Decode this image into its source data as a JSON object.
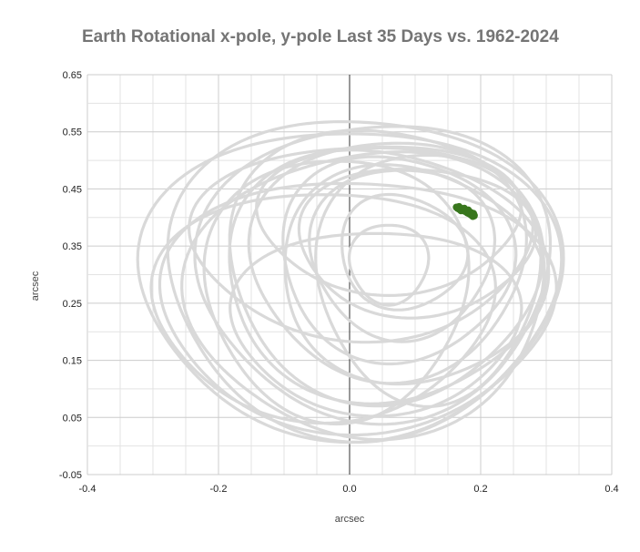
{
  "chart_data": {
    "type": "scatter",
    "title": "Earth Rotational x-pole, y-pole Last 35 Days vs. 1962-2024",
    "xlabel": "arcsec",
    "ylabel": "arcsec",
    "xlim": [
      -0.4,
      0.4
    ],
    "ylim": [
      -0.05,
      0.65
    ],
    "x_ticks": [
      "-0.4",
      "-0.2",
      "0.0",
      "0.2",
      "0.4"
    ],
    "y_ticks": [
      "-0.05",
      "0.05",
      "0.15",
      "0.25",
      "0.35",
      "0.45",
      "0.55",
      "0.65"
    ],
    "grid": true,
    "legend": "none",
    "series": [
      {
        "color": "#d9d9d9",
        "loops": [
          {
            "cx": 0.0,
            "cy": 0.29,
            "rx": 0.32,
            "ry": 0.27,
            "tilt": 0.0
          },
          {
            "cx": 0.02,
            "cy": 0.3,
            "rx": 0.3,
            "ry": 0.28,
            "tilt": 0.08
          },
          {
            "cx": 0.04,
            "cy": 0.31,
            "rx": 0.27,
            "ry": 0.26,
            "tilt": -0.1
          },
          {
            "cx": 0.05,
            "cy": 0.32,
            "rx": 0.24,
            "ry": 0.24,
            "tilt": 0.15
          },
          {
            "cx": 0.06,
            "cy": 0.33,
            "rx": 0.21,
            "ry": 0.21,
            "tilt": -0.05
          },
          {
            "cx": 0.07,
            "cy": 0.33,
            "rx": 0.18,
            "ry": 0.18,
            "tilt": 0.2
          },
          {
            "cx": 0.08,
            "cy": 0.34,
            "rx": 0.14,
            "ry": 0.15,
            "tilt": 0.0
          },
          {
            "cx": 0.08,
            "cy": 0.34,
            "rx": 0.1,
            "ry": 0.1,
            "tilt": 0.3
          },
          {
            "cx": 0.06,
            "cy": 0.32,
            "rx": 0.06,
            "ry": 0.07,
            "tilt": 0.0
          },
          {
            "cx": 0.05,
            "cy": 0.3,
            "rx": 0.25,
            "ry": 0.22,
            "tilt": 0.25
          },
          {
            "cx": 0.03,
            "cy": 0.27,
            "rx": 0.28,
            "ry": 0.25,
            "tilt": -0.2
          },
          {
            "cx": 0.01,
            "cy": 0.25,
            "rx": 0.3,
            "ry": 0.22,
            "tilt": 0.05
          },
          {
            "cx": 0.1,
            "cy": 0.36,
            "rx": 0.18,
            "ry": 0.13,
            "tilt": 0.1
          },
          {
            "cx": 0.02,
            "cy": 0.36,
            "rx": 0.26,
            "ry": 0.17,
            "tilt": -0.05
          },
          {
            "cx": -0.02,
            "cy": 0.28,
            "rx": 0.2,
            "ry": 0.23,
            "tilt": 0.0
          },
          {
            "cx": 0.09,
            "cy": 0.3,
            "rx": 0.21,
            "ry": 0.19,
            "tilt": 0.35
          },
          {
            "cx": 0.04,
            "cy": 0.22,
            "rx": 0.22,
            "ry": 0.16,
            "tilt": 0.0
          },
          {
            "cx": -0.04,
            "cy": 0.25,
            "rx": 0.26,
            "ry": 0.2,
            "tilt": 0.0
          },
          {
            "cx": 0.06,
            "cy": 0.4,
            "rx": 0.2,
            "ry": 0.13,
            "tilt": 0.0
          },
          {
            "cx": 0.12,
            "cy": 0.3,
            "rx": 0.17,
            "ry": 0.22,
            "tilt": 0.0
          }
        ]
      },
      {
        "color": "#38761d",
        "points": [
          {
            "x": 0.163,
            "y": 0.418
          },
          {
            "x": 0.166,
            "y": 0.417
          },
          {
            "x": 0.169,
            "y": 0.416
          },
          {
            "x": 0.171,
            "y": 0.415
          },
          {
            "x": 0.173,
            "y": 0.415
          },
          {
            "x": 0.175,
            "y": 0.414
          },
          {
            "x": 0.177,
            "y": 0.413
          },
          {
            "x": 0.179,
            "y": 0.412
          },
          {
            "x": 0.181,
            "y": 0.411
          },
          {
            "x": 0.183,
            "y": 0.41
          },
          {
            "x": 0.184,
            "y": 0.409
          },
          {
            "x": 0.186,
            "y": 0.408
          },
          {
            "x": 0.187,
            "y": 0.407
          },
          {
            "x": 0.188,
            "y": 0.406
          },
          {
            "x": 0.189,
            "y": 0.405
          },
          {
            "x": 0.19,
            "y": 0.404
          },
          {
            "x": 0.19,
            "y": 0.403
          },
          {
            "x": 0.178,
            "y": 0.41
          },
          {
            "x": 0.18,
            "y": 0.408
          },
          {
            "x": 0.176,
            "y": 0.411
          },
          {
            "x": 0.185,
            "y": 0.405
          },
          {
            "x": 0.172,
            "y": 0.413
          },
          {
            "x": 0.168,
            "y": 0.414
          },
          {
            "x": 0.165,
            "y": 0.416
          },
          {
            "x": 0.182,
            "y": 0.407
          },
          {
            "x": 0.174,
            "y": 0.412
          },
          {
            "x": 0.186,
            "y": 0.404
          },
          {
            "x": 0.17,
            "y": 0.412
          },
          {
            "x": 0.188,
            "y": 0.402
          },
          {
            "x": 0.179,
            "y": 0.409
          },
          {
            "x": 0.184,
            "y": 0.406
          },
          {
            "x": 0.167,
            "y": 0.419
          },
          {
            "x": 0.175,
            "y": 0.416
          },
          {
            "x": 0.181,
            "y": 0.413
          },
          {
            "x": 0.189,
            "y": 0.407
          }
        ]
      }
    ]
  }
}
